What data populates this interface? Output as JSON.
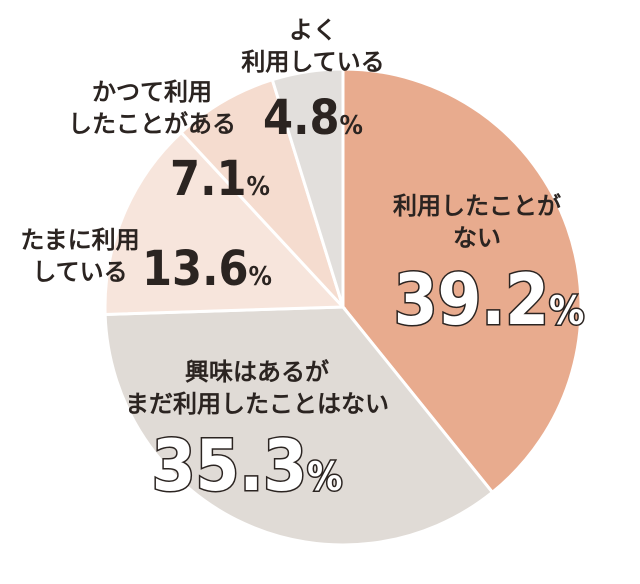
{
  "chart_data": {
    "type": "pie",
    "start": "top",
    "direction": "clockwise",
    "slices": [
      {
        "label": [
          "利用したことが",
          "ない"
        ],
        "value": 39.2,
        "display": "39.2%",
        "color": "#e8ab8e"
      },
      {
        "label": [
          "興味はあるが",
          "まだ利用したことはない"
        ],
        "value": 35.3,
        "display": "35.3%",
        "color": "#e0dbd6"
      },
      {
        "label": [
          "たまに利用",
          "している"
        ],
        "value": 13.6,
        "display": "13.6%",
        "color": "#f7e5dc"
      },
      {
        "label": [
          "かつて利用",
          "したことがある"
        ],
        "value": 7.1,
        "display": "7.1%",
        "color": "#f5dccf"
      },
      {
        "label": [
          "よく",
          "利用している"
        ],
        "value": 4.8,
        "display": "4.8%",
        "color": "#e2dfdc"
      }
    ]
  }
}
